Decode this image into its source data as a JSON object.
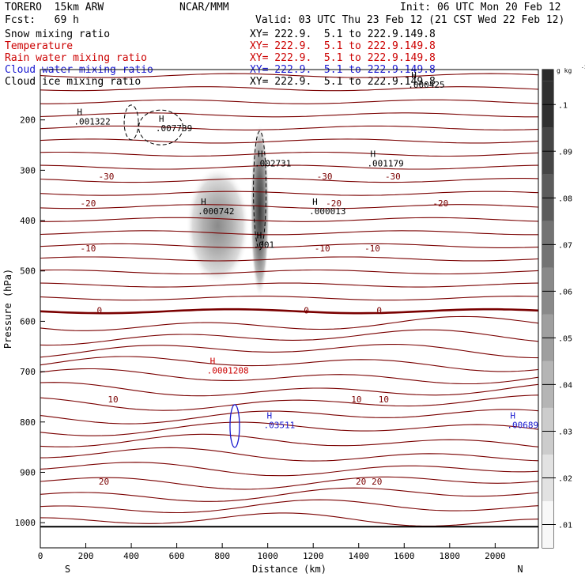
{
  "header": {
    "model": "TORERO  15km ARW",
    "org": "NCAR/MMM",
    "init": "Init: 06 UTC Mon 20 Feb 12",
    "fcst": "Fcst:   69 h",
    "valid": "Valid: 03 UTC Thu 23 Feb 12 (21 CST Wed 22 Feb 12)"
  },
  "fields": [
    {
      "label": "Snow mixing ratio",
      "xy": "XY= 222.9.  5.1 to 222.9.149.8",
      "color": "#000000"
    },
    {
      "label": "Temperature",
      "xy": "XY= 222.9.  5.1 to 222.9.149.8",
      "color": "#cc0000"
    },
    {
      "label": "Rain water mixing ratio",
      "xy": "XY= 222.9.  5.1 to 222.9.149.8",
      "color": "#cc0000"
    },
    {
      "label": "Cloud water mixing ratio",
      "xy": "XY= 222.9.  5.1 to 222.9.149.8",
      "color": "#1a1ad0"
    },
    {
      "label": "Cloud ice mixing ratio",
      "xy": "XY= 222.9.  5.1 to 222.9.149.8",
      "color": "#000000"
    }
  ],
  "chart_data": {
    "type": "heatmap",
    "xlabel": "Distance (km)",
    "ylabel": "Pressure (hPa)",
    "xlim": [
      0,
      2190
    ],
    "ylim": [
      1050,
      100
    ],
    "xticks": [
      0,
      200,
      400,
      600,
      800,
      1000,
      1200,
      1400,
      1600,
      1800,
      2000
    ],
    "yticks": [
      200,
      300,
      400,
      500,
      600,
      700,
      800,
      900,
      1000
    ],
    "end_labels": {
      "left": "S",
      "right": "N"
    },
    "colorbar": {
      "unit": "g kg",
      "unit_exp": "-1",
      "levels": [
        0.01,
        0.02,
        0.03,
        0.04,
        0.05,
        0.06,
        0.07,
        0.08,
        0.09,
        0.1
      ],
      "tick_labels": [
        ".01",
        ".02",
        ".03",
        ".04",
        ".05",
        ".06",
        ".07",
        ".08",
        ".09",
        ".1"
      ]
    },
    "temperature_isotherms": [
      {
        "value": -30,
        "label": "-30",
        "p_level": 312
      },
      {
        "value": -20,
        "label": "-20",
        "p_level": 365
      },
      {
        "value": -10,
        "label": "-10",
        "p_level": 455
      },
      {
        "value": 0,
        "label": "0",
        "p_level": 578
      },
      {
        "value": 10,
        "label": "10",
        "p_level": 755
      },
      {
        "value": 20,
        "label": "20",
        "p_level": 918
      }
    ],
    "maxima": [
      {
        "field": "Cloud ice",
        "x": 175,
        "p": 200,
        "label": ".001322",
        "color": "#000000"
      },
      {
        "field": "Cloud ice",
        "x": 535,
        "p": 213,
        "label": ".007739",
        "color": "#000000"
      },
      {
        "field": "Cloud ice",
        "x": 970,
        "p": 283,
        "label": ".002731",
        "color": "#000000"
      },
      {
        "field": "Cloud ice",
        "x": 1465,
        "p": 283,
        "label": ".001179",
        "color": "#000000"
      },
      {
        "field": "Cloud ice",
        "x": 1645,
        "p": 127,
        "label": ".000425",
        "color": "#000000"
      },
      {
        "field": "Snow",
        "x": 720,
        "p": 378,
        "label": ".000742",
        "color": "#000000"
      },
      {
        "field": "Snow",
        "x": 1210,
        "p": 378,
        "label": ".000013",
        "color": "#000000"
      },
      {
        "field": "Cloud ice",
        "x": 965,
        "p": 445,
        "label": ".001",
        "color": "#000000"
      },
      {
        "field": "Rain water",
        "x": 760,
        "p": 694,
        "label": ".0001208",
        "color": "#cc0000"
      },
      {
        "field": "Cloud water",
        "x": 1010,
        "p": 803,
        "label": ".03511",
        "color": "#1a1ad0"
      },
      {
        "field": "Cloud water",
        "x": 2080,
        "p": 803,
        "label": ".00689",
        "color": "#1a1ad0"
      }
    ],
    "snow_maxima": [
      {
        "x": 780,
        "p": 405,
        "value": 0.03
      },
      {
        "x": 965,
        "p": 385,
        "value": 0.07
      }
    ]
  }
}
